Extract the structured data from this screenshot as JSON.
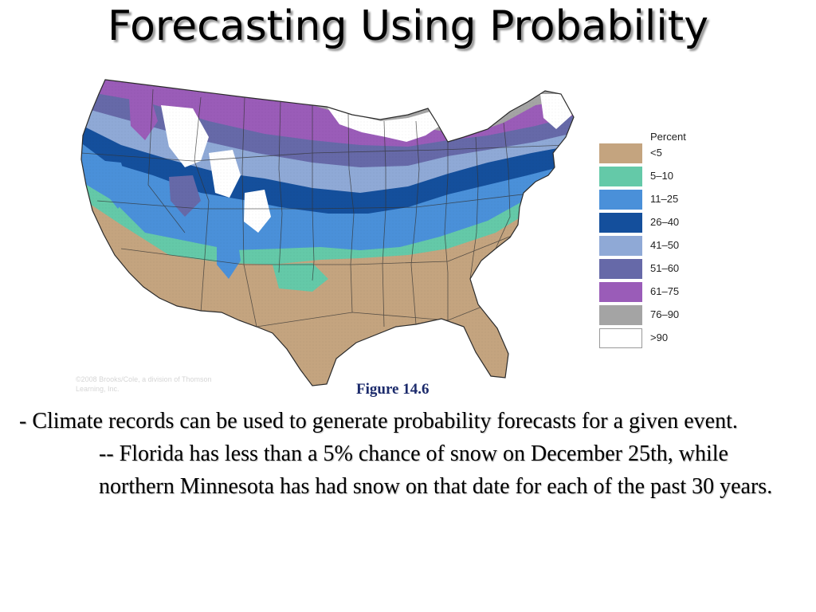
{
  "slide": {
    "title": "Forecasting Using Probability",
    "figure_caption": "Figure 14.6",
    "bullet": "- Climate records can be used to generate probability forecasts for a given event.",
    "sub_bullet": "-- Florida has less than a 5% chance of snow on December 25th, while northern Minnesota has had snow on that date for each of the past 30 years.",
    "credit": "©2008 Brooks/Cole, a division of Thomson Learning, Inc."
  },
  "legend": {
    "title": "Percent",
    "items": [
      {
        "label": "<5",
        "color": "#c4a47f"
      },
      {
        "label": "5–10",
        "color": "#64c9a8"
      },
      {
        "label": "11–25",
        "color": "#4a90d9"
      },
      {
        "label": "26–40",
        "color": "#144f9c"
      },
      {
        "label": "41–50",
        "color": "#8fa9d6"
      },
      {
        "label": "51–60",
        "color": "#6669a8"
      },
      {
        "label": "61–75",
        "color": "#9a5cb8"
      },
      {
        "label": "76–90",
        "color": "#a4a4a4"
      },
      {
        "label": ">90",
        "color": "#ffffff"
      }
    ]
  }
}
